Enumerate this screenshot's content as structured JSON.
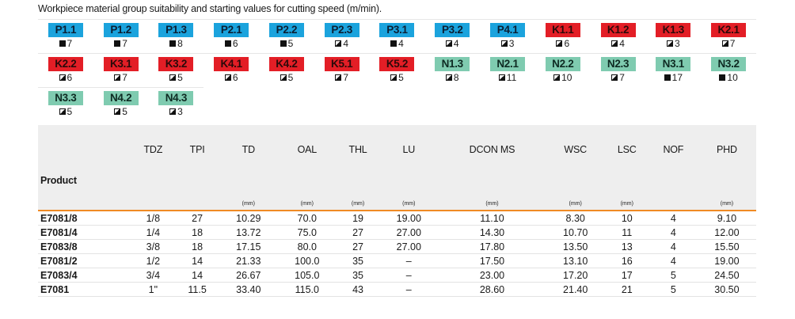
{
  "caption": "Workpiece material group suitability and starting values for cutting speed (m/min).",
  "materials": [
    {
      "code": "P1.1",
      "group": "blue",
      "symbol": "full",
      "value": "7"
    },
    {
      "code": "P1.2",
      "group": "blue",
      "symbol": "full",
      "value": "7"
    },
    {
      "code": "P1.3",
      "group": "blue",
      "symbol": "full",
      "value": "8"
    },
    {
      "code": "P2.1",
      "group": "blue",
      "symbol": "full",
      "value": "6"
    },
    {
      "code": "P2.2",
      "group": "blue",
      "symbol": "full",
      "value": "5"
    },
    {
      "code": "P2.3",
      "group": "blue",
      "symbol": "half",
      "value": "4"
    },
    {
      "code": "P3.1",
      "group": "blue",
      "symbol": "full",
      "value": "4"
    },
    {
      "code": "P3.2",
      "group": "blue",
      "symbol": "half",
      "value": "4"
    },
    {
      "code": "P4.1",
      "group": "blue",
      "symbol": "half",
      "value": "3"
    },
    {
      "code": "K1.1",
      "group": "red",
      "symbol": "half",
      "value": "6"
    },
    {
      "code": "K1.2",
      "group": "red",
      "symbol": "half",
      "value": "4"
    },
    {
      "code": "K1.3",
      "group": "red",
      "symbol": "half",
      "value": "3"
    },
    {
      "code": "K2.1",
      "group": "red",
      "symbol": "half",
      "value": "7"
    },
    {
      "code": "K2.2",
      "group": "red",
      "symbol": "half",
      "value": "6"
    },
    {
      "code": "K3.1",
      "group": "red",
      "symbol": "half",
      "value": "7"
    },
    {
      "code": "K3.2",
      "group": "red",
      "symbol": "half",
      "value": "5"
    },
    {
      "code": "K4.1",
      "group": "red",
      "symbol": "half",
      "value": "6"
    },
    {
      "code": "K4.2",
      "group": "red",
      "symbol": "half",
      "value": "5"
    },
    {
      "code": "K5.1",
      "group": "red",
      "symbol": "half",
      "value": "7"
    },
    {
      "code": "K5.2",
      "group": "red",
      "symbol": "half",
      "value": "5"
    },
    {
      "code": "N1.3",
      "group": "teal",
      "symbol": "half",
      "value": "8"
    },
    {
      "code": "N2.1",
      "group": "teal",
      "symbol": "half",
      "value": "11"
    },
    {
      "code": "N2.2",
      "group": "teal",
      "symbol": "half",
      "value": "10"
    },
    {
      "code": "N2.3",
      "group": "teal",
      "symbol": "half",
      "value": "7"
    },
    {
      "code": "N3.1",
      "group": "teal",
      "symbol": "full",
      "value": "17"
    },
    {
      "code": "N3.2",
      "group": "teal",
      "symbol": "full",
      "value": "10"
    },
    {
      "code": "N3.3",
      "group": "teal",
      "symbol": "half",
      "value": "5"
    },
    {
      "code": "N4.2",
      "group": "teal",
      "symbol": "half",
      "value": "5"
    },
    {
      "code": "N4.3",
      "group": "teal",
      "symbol": "half",
      "value": "3"
    }
  ],
  "table": {
    "headers": [
      "Product",
      "TDZ",
      "TPI",
      "TD",
      "OAL",
      "THL",
      "LU",
      "DCON MS",
      "WSC",
      "LSC",
      "NOF",
      "PHD"
    ],
    "units": [
      "",
      "",
      "",
      "(mm)",
      "(mm)",
      "(mm)",
      "(mm)",
      "(mm)",
      "(mm)",
      "(mm)",
      "",
      "(mm)"
    ],
    "rows": [
      [
        "E7081/8",
        "1/8",
        "27",
        "10.29",
        "70.0",
        "19",
        "19.00",
        "11.10",
        "8.30",
        "10",
        "4",
        "9.10"
      ],
      [
        "E7081/4",
        "1/4",
        "18",
        "13.72",
        "75.0",
        "27",
        "27.00",
        "14.30",
        "10.70",
        "11",
        "4",
        "12.00"
      ],
      [
        "E7083/8",
        "3/8",
        "18",
        "17.15",
        "80.0",
        "27",
        "27.00",
        "17.80",
        "13.50",
        "13",
        "4",
        "15.50"
      ],
      [
        "E7081/2",
        "1/2",
        "14",
        "21.33",
        "100.0",
        "35",
        "–",
        "17.50",
        "13.10",
        "16",
        "4",
        "19.00"
      ],
      [
        "E7083/4",
        "3/4",
        "14",
        "26.67",
        "105.0",
        "35",
        "–",
        "23.00",
        "17.20",
        "17",
        "5",
        "24.50"
      ],
      [
        "E7081",
        "1\"",
        "11.5",
        "33.40",
        "115.0",
        "43",
        "–",
        "28.60",
        "21.40",
        "21",
        "5",
        "30.50"
      ]
    ]
  },
  "colors": {
    "blue": "#1ba3dd",
    "red": "#e31e26",
    "teal": "#7fcbb0",
    "accent": "#f08a24"
  }
}
